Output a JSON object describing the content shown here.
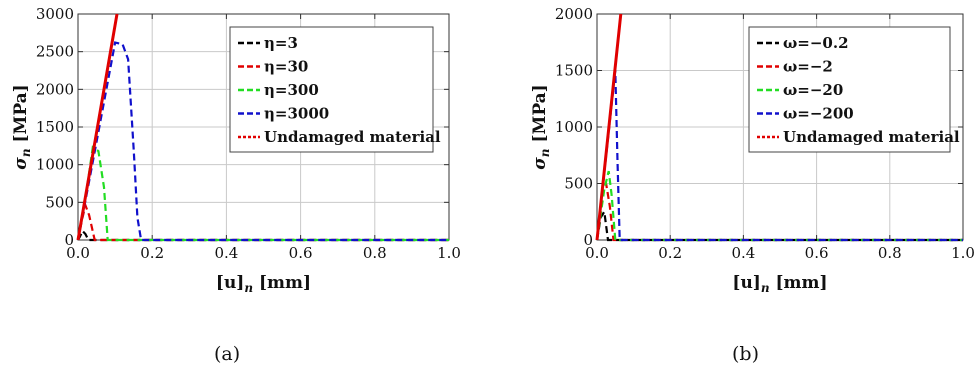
{
  "chart_data": [
    {
      "type": "line",
      "panel_label": "(a)",
      "xlabel_main": "[u]",
      "xlabel_sub": "n",
      "xlabel_unit": "[mm]",
      "ylabel_main": "σ",
      "ylabel_sub": "n",
      "ylabel_unit": "[MPa]",
      "xlim": [
        0,
        1.0
      ],
      "ylim": [
        0,
        3000
      ],
      "xticks": [
        "0.0",
        "0.2",
        "0.4",
        "0.6",
        "0.8",
        "1.0"
      ],
      "xtick_values": [
        0,
        0.2,
        0.4,
        0.6,
        0.8,
        1.0
      ],
      "yticks": [
        "0",
        "500",
        "1000",
        "1500",
        "2000",
        "2500",
        "3000"
      ],
      "ytick_values": [
        0,
        500,
        1000,
        1500,
        2000,
        2500,
        3000
      ],
      "grid": true,
      "legend_position": "top-right",
      "series": [
        {
          "name": "η=3",
          "color": "#000000",
          "style": "dashed",
          "x": [
            0.0,
            0.005,
            0.012,
            0.02,
            0.028,
            1.0
          ],
          "y": [
            0,
            45,
            120,
            80,
            0,
            0
          ]
        },
        {
          "name": "η=30",
          "color": "#e00000",
          "style": "dashed",
          "x": [
            0.0,
            0.01,
            0.02,
            0.03,
            0.045,
            1.0
          ],
          "y": [
            0,
            250,
            460,
            330,
            0,
            0
          ]
        },
        {
          "name": "η=300",
          "color": "#22dd22",
          "style": "dashed",
          "x": [
            0.0,
            0.02,
            0.04,
            0.055,
            0.07,
            0.08,
            1.0
          ],
          "y": [
            0,
            550,
            1230,
            1180,
            700,
            0,
            0
          ]
        },
        {
          "name": "η=3000",
          "color": "#1010cc",
          "style": "dashed",
          "x": [
            0.0,
            0.05,
            0.1,
            0.12,
            0.135,
            0.15,
            0.16,
            0.17,
            1.0
          ],
          "y": [
            0,
            1300,
            2620,
            2600,
            2400,
            1200,
            300,
            0,
            0
          ]
        },
        {
          "name": "Undamaged material",
          "color": "#e00000",
          "style": "solid",
          "x": [
            0.0,
            0.105
          ],
          "y": [
            0,
            3000
          ]
        }
      ]
    },
    {
      "type": "line",
      "panel_label": "(b)",
      "xlabel_main": "[u]",
      "xlabel_sub": "n",
      "xlabel_unit": "[mm]",
      "ylabel_main": "σ",
      "ylabel_sub": "n",
      "ylabel_unit": "[MPa]",
      "xlim": [
        0,
        1.0
      ],
      "ylim": [
        0,
        2000
      ],
      "xticks": [
        "0.0",
        "0.2",
        "0.4",
        "0.6",
        "0.8",
        "1.0"
      ],
      "xtick_values": [
        0,
        0.2,
        0.4,
        0.6,
        0.8,
        1.0
      ],
      "yticks": [
        "0",
        "500",
        "1000",
        "1500",
        "2000"
      ],
      "ytick_values": [
        0,
        500,
        1000,
        1500,
        2000
      ],
      "grid": true,
      "legend_position": "top-right",
      "series": [
        {
          "name": "ω=−0.2",
          "color": "#000000",
          "style": "dashed",
          "x": [
            0.0,
            0.01,
            0.02,
            0.03,
            1.0
          ],
          "y": [
            0,
            200,
            250,
            0,
            0
          ]
        },
        {
          "name": "ω=−2",
          "color": "#e00000",
          "style": "dashed",
          "x": [
            0.0,
            0.015,
            0.025,
            0.035,
            0.045,
            1.0
          ],
          "y": [
            0,
            400,
            500,
            300,
            0,
            0
          ]
        },
        {
          "name": "ω=−20",
          "color": "#22dd22",
          "style": "dashed",
          "x": [
            0.0,
            0.02,
            0.032,
            0.04,
            0.05,
            1.0
          ],
          "y": [
            0,
            450,
            610,
            400,
            0,
            0
          ]
        },
        {
          "name": "ω=−200",
          "color": "#1010cc",
          "style": "dashed",
          "x": [
            0.0,
            0.03,
            0.05,
            0.056,
            0.062,
            1.0
          ],
          "y": [
            0,
            900,
            1500,
            700,
            0,
            0
          ]
        },
        {
          "name": "Undamaged material",
          "color": "#e00000",
          "style": "solid",
          "x": [
            0.0,
            0.065
          ],
          "y": [
            0,
            2000
          ]
        }
      ]
    }
  ]
}
